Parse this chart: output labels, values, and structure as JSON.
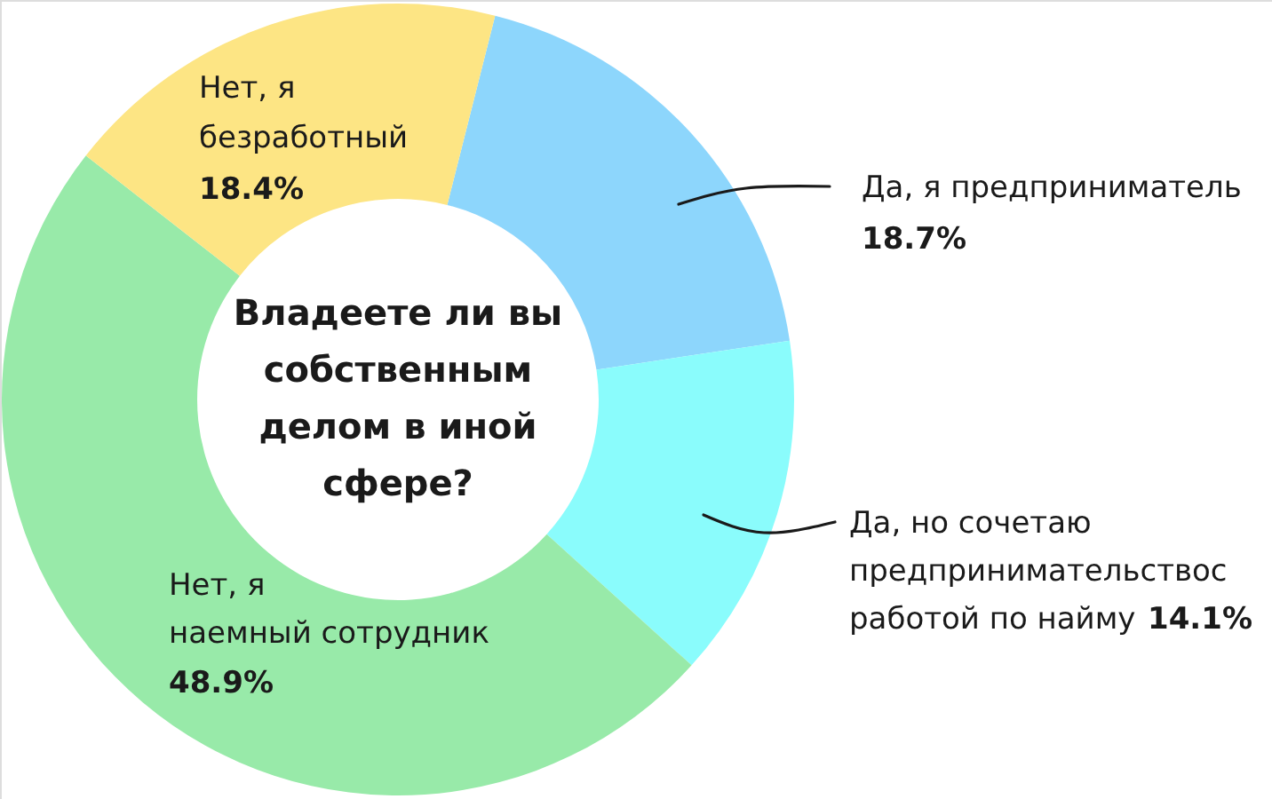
{
  "chart_data": {
    "type": "donut",
    "title": "Владеете ли вы собственным делом в иной сфере?",
    "categories": [
      "Да, я предприниматель",
      "Да, но сочетаю предпринимательствос работой по найму",
      "Нет, я наемный сотрудник",
      "Нет, я безработный"
    ],
    "values": [
      18.7,
      14.1,
      48.9,
      18.4
    ],
    "colors": [
      "#8dd6fc",
      "#8afcfc",
      "#98eaa9",
      "#fde584"
    ],
    "value_labels": [
      "18.7%",
      "14.1%",
      "48.9%",
      "18.4%"
    ]
  }
}
